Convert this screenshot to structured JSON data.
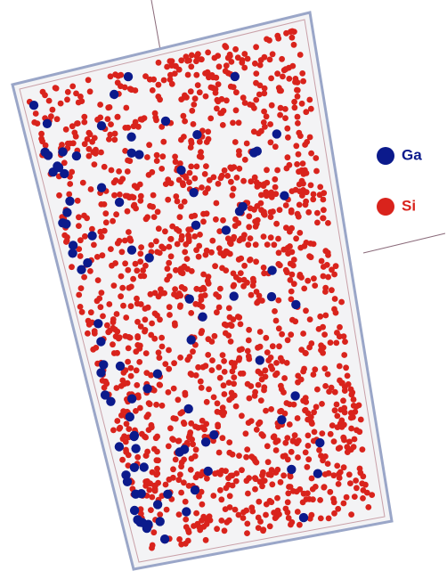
{
  "legend": [
    {
      "label": "Ga",
      "color": "#0b1a8c"
    },
    {
      "label": "Si",
      "color": "#d9231c"
    }
  ]
}
